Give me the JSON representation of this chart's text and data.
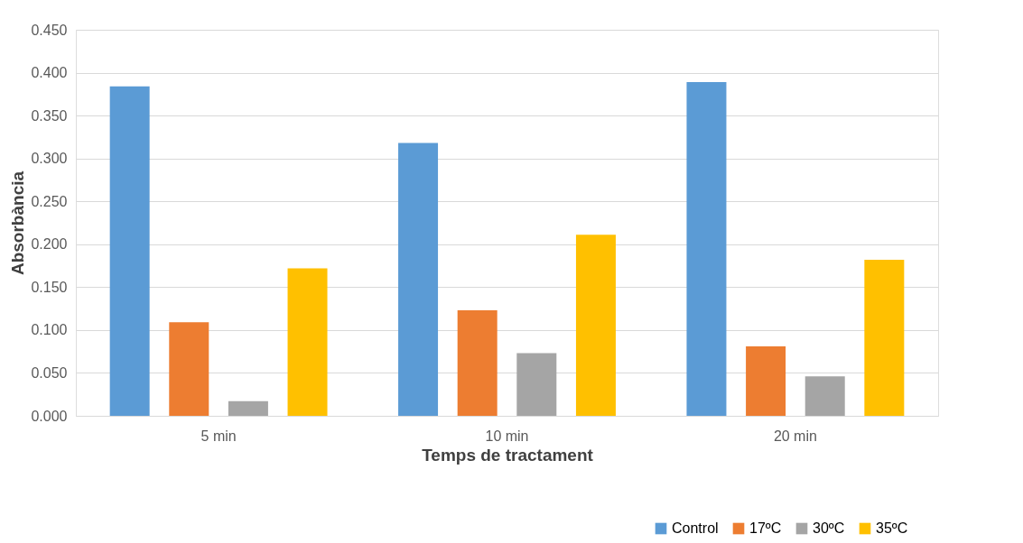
{
  "chart_data": {
    "type": "bar",
    "xlabel": "Temps de tractament",
    "ylabel": "Absorbància",
    "categories": [
      "5 min",
      "10 min",
      "20 min"
    ],
    "series": [
      {
        "name": "Control",
        "color": "#5b9bd5",
        "values": [
          0.384,
          0.318,
          0.389
        ]
      },
      {
        "name": "17ºC",
        "color": "#ed7d31",
        "values": [
          0.109,
          0.123,
          0.081
        ]
      },
      {
        "name": "30ºC",
        "color": "#a5a5a5",
        "values": [
          0.017,
          0.073,
          0.046
        ]
      },
      {
        "name": "35ºC",
        "color": "#ffc000",
        "values": [
          0.172,
          0.211,
          0.182
        ]
      }
    ],
    "ylim": [
      0,
      0.45
    ],
    "yticks": [
      {
        "value": 0,
        "label": "0.000"
      },
      {
        "value": 0.05,
        "label": "0.050"
      },
      {
        "value": 0.1,
        "label": "0.100"
      },
      {
        "value": 0.15,
        "label": "0.150"
      },
      {
        "value": 0.2,
        "label": "0.200"
      },
      {
        "value": 0.25,
        "label": "0.250"
      },
      {
        "value": 0.3,
        "label": "0.300"
      },
      {
        "value": 0.35,
        "label": "0.350"
      },
      {
        "value": 0.4,
        "label": "0.400"
      },
      {
        "value": 0.45,
        "label": "0.450"
      }
    ],
    "grid": "y",
    "legend": "bottom right"
  }
}
